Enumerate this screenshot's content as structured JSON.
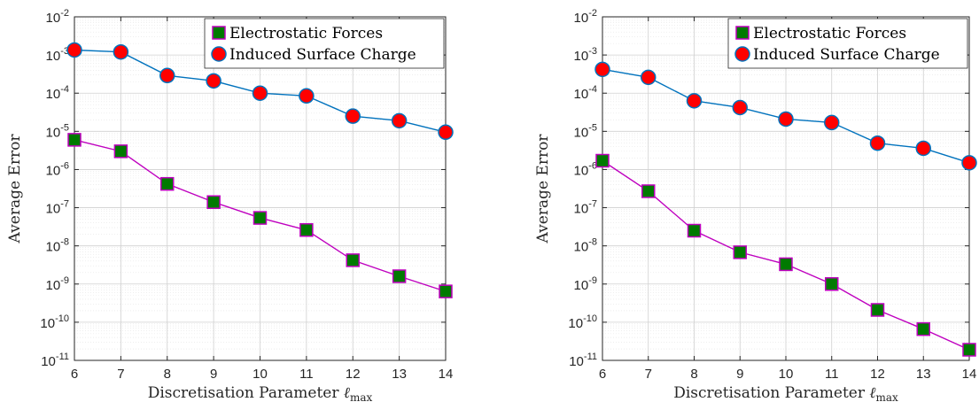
{
  "chart_data": [
    {
      "type": "line",
      "xlabel": "Discretisation Parameter",
      "xlabel_symbol": "ℓ",
      "xlabel_subscript": "max",
      "ylabel": "Average Error",
      "xlim": [
        6,
        14
      ],
      "ylim_exponent": [
        -11,
        -2
      ],
      "yscale": "log",
      "x_ticks": [
        "6",
        "7",
        "8",
        "9",
        "10",
        "11",
        "12",
        "13",
        "14"
      ],
      "y_tick_base": "10",
      "y_tick_exponents": [
        "-11",
        "-10",
        "-9",
        "-8",
        "-7",
        "-6",
        "-5",
        "-4",
        "-3",
        "-2"
      ],
      "grid": true,
      "legend_position": "top-right",
      "x": [
        6,
        7,
        8,
        9,
        10,
        11,
        12,
        13,
        14
      ],
      "series": [
        {
          "name": "Electrostatic Forces",
          "marker": "square",
          "line_color": "#bf00bf",
          "marker_face": "#007a00",
          "marker_edge": "#bf00bf",
          "values": [
            6e-06,
            3e-06,
            4.2e-07,
            1.4e-07,
            5.4e-08,
            2.6e-08,
            4.2e-09,
            1.6e-09,
            6.4e-10
          ]
        },
        {
          "name": "Induced Surface Charge",
          "marker": "circle",
          "line_color": "#0072bd",
          "marker_face": "#ff0000",
          "marker_edge": "#0072bd",
          "values": [
            0.00135,
            0.0012,
            0.00029,
            0.00021,
            0.0001,
            8.5e-05,
            2.5e-05,
            1.9e-05,
            9.5e-06
          ]
        }
      ]
    },
    {
      "type": "line",
      "xlabel": "Discretisation Parameter",
      "xlabel_symbol": "ℓ",
      "xlabel_subscript": "max",
      "ylabel": "Average Error",
      "xlim": [
        6,
        14
      ],
      "ylim_exponent": [
        -11,
        -2
      ],
      "yscale": "log",
      "x_ticks": [
        "6",
        "7",
        "8",
        "9",
        "10",
        "11",
        "12",
        "13",
        "14"
      ],
      "y_tick_base": "10",
      "y_tick_exponents": [
        "-11",
        "-10",
        "-9",
        "-8",
        "-7",
        "-6",
        "-5",
        "-4",
        "-3",
        "-2"
      ],
      "grid": true,
      "legend_position": "top-right",
      "x": [
        6,
        7,
        8,
        9,
        10,
        11,
        12,
        13,
        14
      ],
      "series": [
        {
          "name": "Electrostatic Forces",
          "marker": "square",
          "line_color": "#bf00bf",
          "marker_face": "#007a00",
          "marker_edge": "#bf00bf",
          "values": [
            1.7e-06,
            2.7e-07,
            2.5e-08,
            6.8e-09,
            3.3e-09,
            1e-09,
            2.1e-10,
            6.6e-11,
            1.9e-11
          ]
        },
        {
          "name": "Induced Surface Charge",
          "marker": "circle",
          "line_color": "#0072bd",
          "marker_face": "#ff0000",
          "marker_edge": "#0072bd",
          "values": [
            0.00042,
            0.00026,
            6.3e-05,
            4.2e-05,
            2.1e-05,
            1.7e-05,
            4.9e-06,
            3.6e-06,
            1.5e-06
          ]
        }
      ]
    }
  ]
}
